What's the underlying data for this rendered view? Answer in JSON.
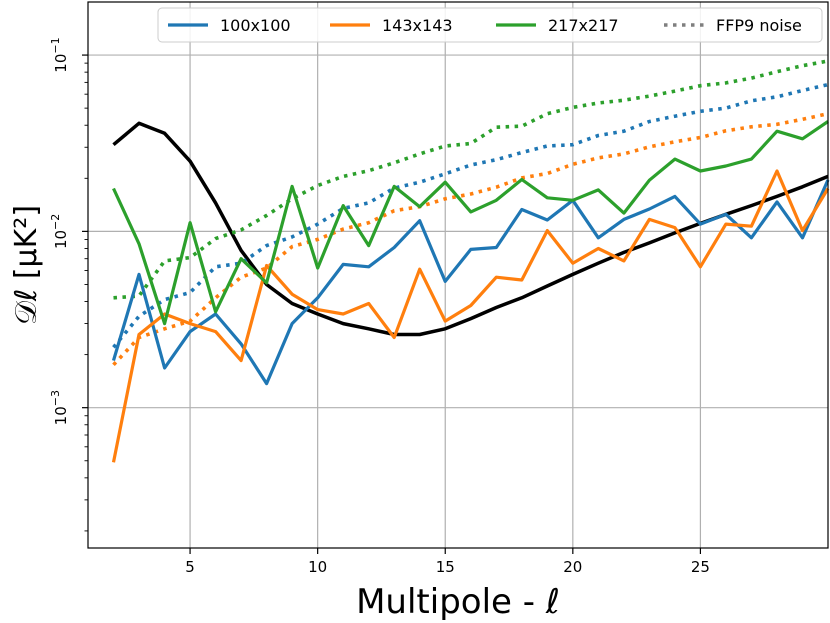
{
  "chart_data": {
    "type": "line",
    "xlabel": "Multipole - ℓ",
    "ylabel": "𝒟ℓ [μK²]",
    "xlim": [
      1.0,
      30.0
    ],
    "ylim": [
      0.00016,
      0.2
    ],
    "yscale": "log",
    "grid": true,
    "legend_position": "top",
    "x_ticks": [
      5,
      10,
      15,
      20,
      25
    ],
    "y_ticks": [
      {
        "value": 0.001,
        "label": "10",
        "exp": "−3"
      },
      {
        "value": 0.01,
        "label": "10",
        "exp": "−2"
      },
      {
        "value": 0.1,
        "label": "10",
        "exp": "−1"
      }
    ],
    "x": [
      2,
      3,
      4,
      5,
      6,
      7,
      8,
      9,
      10,
      11,
      12,
      13,
      14,
      15,
      16,
      17,
      18,
      19,
      20,
      21,
      22,
      23,
      24,
      25,
      26,
      27,
      28,
      29,
      30
    ],
    "series": [
      {
        "name": "100x100",
        "color": "#1f77b4",
        "dash": "solid",
        "values": [
          0.00185,
          0.0057,
          0.00168,
          0.0027,
          0.0034,
          0.0023,
          0.00137,
          0.003,
          0.0042,
          0.0065,
          0.0063,
          0.0081,
          0.0115,
          0.0052,
          0.0079,
          0.0081,
          0.0133,
          0.0116,
          0.015,
          0.0092,
          0.0117,
          0.0134,
          0.0158,
          0.011,
          0.0125,
          0.0092,
          0.0147,
          0.0092,
          0.0196
        ]
      },
      {
        "name": "143x143",
        "color": "#ff7f0e",
        "dash": "solid",
        "values": [
          0.00049,
          0.0026,
          0.0034,
          0.003,
          0.0027,
          0.00185,
          0.0064,
          0.0044,
          0.0036,
          0.0034,
          0.0039,
          0.0025,
          0.0061,
          0.0031,
          0.0038,
          0.0055,
          0.0053,
          0.0101,
          0.0066,
          0.008,
          0.0068,
          0.0117,
          0.0105,
          0.0063,
          0.011,
          0.0107,
          0.022,
          0.0101,
          0.0175
        ]
      },
      {
        "name": "217x217",
        "color": "#2ca02c",
        "dash": "solid",
        "values": [
          0.0175,
          0.0085,
          0.003,
          0.0112,
          0.0035,
          0.007,
          0.0051,
          0.018,
          0.0062,
          0.014,
          0.0083,
          0.018,
          0.0138,
          0.019,
          0.0129,
          0.015,
          0.0197,
          0.0155,
          0.015,
          0.0172,
          0.0127,
          0.0195,
          0.0257,
          0.022,
          0.0235,
          0.0257,
          0.037,
          0.0335,
          0.042
        ]
      },
      {
        "name": "",
        "color": "#000000",
        "dash": "solid",
        "width": 3.5,
        "values": [
          0.031,
          0.041,
          0.036,
          0.025,
          0.0145,
          0.0078,
          0.005,
          0.0039,
          0.0034,
          0.003,
          0.0028,
          0.0026,
          0.0026,
          0.0028,
          0.0032,
          0.0037,
          0.0042,
          0.0049,
          0.0057,
          0.0066,
          0.0076,
          0.0086,
          0.0098,
          0.0111,
          0.0125,
          0.014,
          0.0158,
          0.0179,
          0.0205
        ]
      },
      {
        "name": "",
        "color": "#1f77b4",
        "dash": "dotted",
        "values": [
          0.0022,
          0.0033,
          0.0041,
          0.0045,
          0.0063,
          0.0066,
          0.0083,
          0.0093,
          0.011,
          0.0135,
          0.0145,
          0.0176,
          0.019,
          0.0212,
          0.0238,
          0.0255,
          0.028,
          0.0305,
          0.031,
          0.035,
          0.037,
          0.042,
          0.045,
          0.048,
          0.05,
          0.055,
          0.058,
          0.063,
          0.068
        ]
      },
      {
        "name": "",
        "color": "#ff7f0e",
        "dash": "dotted",
        "values": [
          0.00175,
          0.0025,
          0.0028,
          0.0031,
          0.0042,
          0.0055,
          0.0062,
          0.0082,
          0.009,
          0.0103,
          0.0112,
          0.0131,
          0.0138,
          0.0153,
          0.0163,
          0.0178,
          0.0201,
          0.0213,
          0.024,
          0.0261,
          0.0275,
          0.0302,
          0.0322,
          0.0341,
          0.0372,
          0.0392,
          0.0405,
          0.0432,
          0.0465
        ]
      },
      {
        "name": "",
        "color": "#2ca02c",
        "dash": "dotted",
        "values": [
          0.0042,
          0.0043,
          0.0068,
          0.0071,
          0.0091,
          0.0102,
          0.0123,
          0.0153,
          0.0182,
          0.0205,
          0.0221,
          0.0245,
          0.0275,
          0.0305,
          0.0315,
          0.039,
          0.0395,
          0.0465,
          0.0505,
          0.0535,
          0.0555,
          0.0585,
          0.0625,
          0.067,
          0.0695,
          0.074,
          0.0805,
          0.087,
          0.0925
        ]
      }
    ],
    "legend": [
      {
        "label": "100x100",
        "color": "#1f77b4",
        "dash": "solid"
      },
      {
        "label": "143x143",
        "color": "#ff7f0e",
        "dash": "solid"
      },
      {
        "label": "217x217",
        "color": "#2ca02c",
        "dash": "solid"
      },
      {
        "label": "FFP9 noise",
        "color": "#7f7f7f",
        "dash": "dotted"
      }
    ]
  }
}
